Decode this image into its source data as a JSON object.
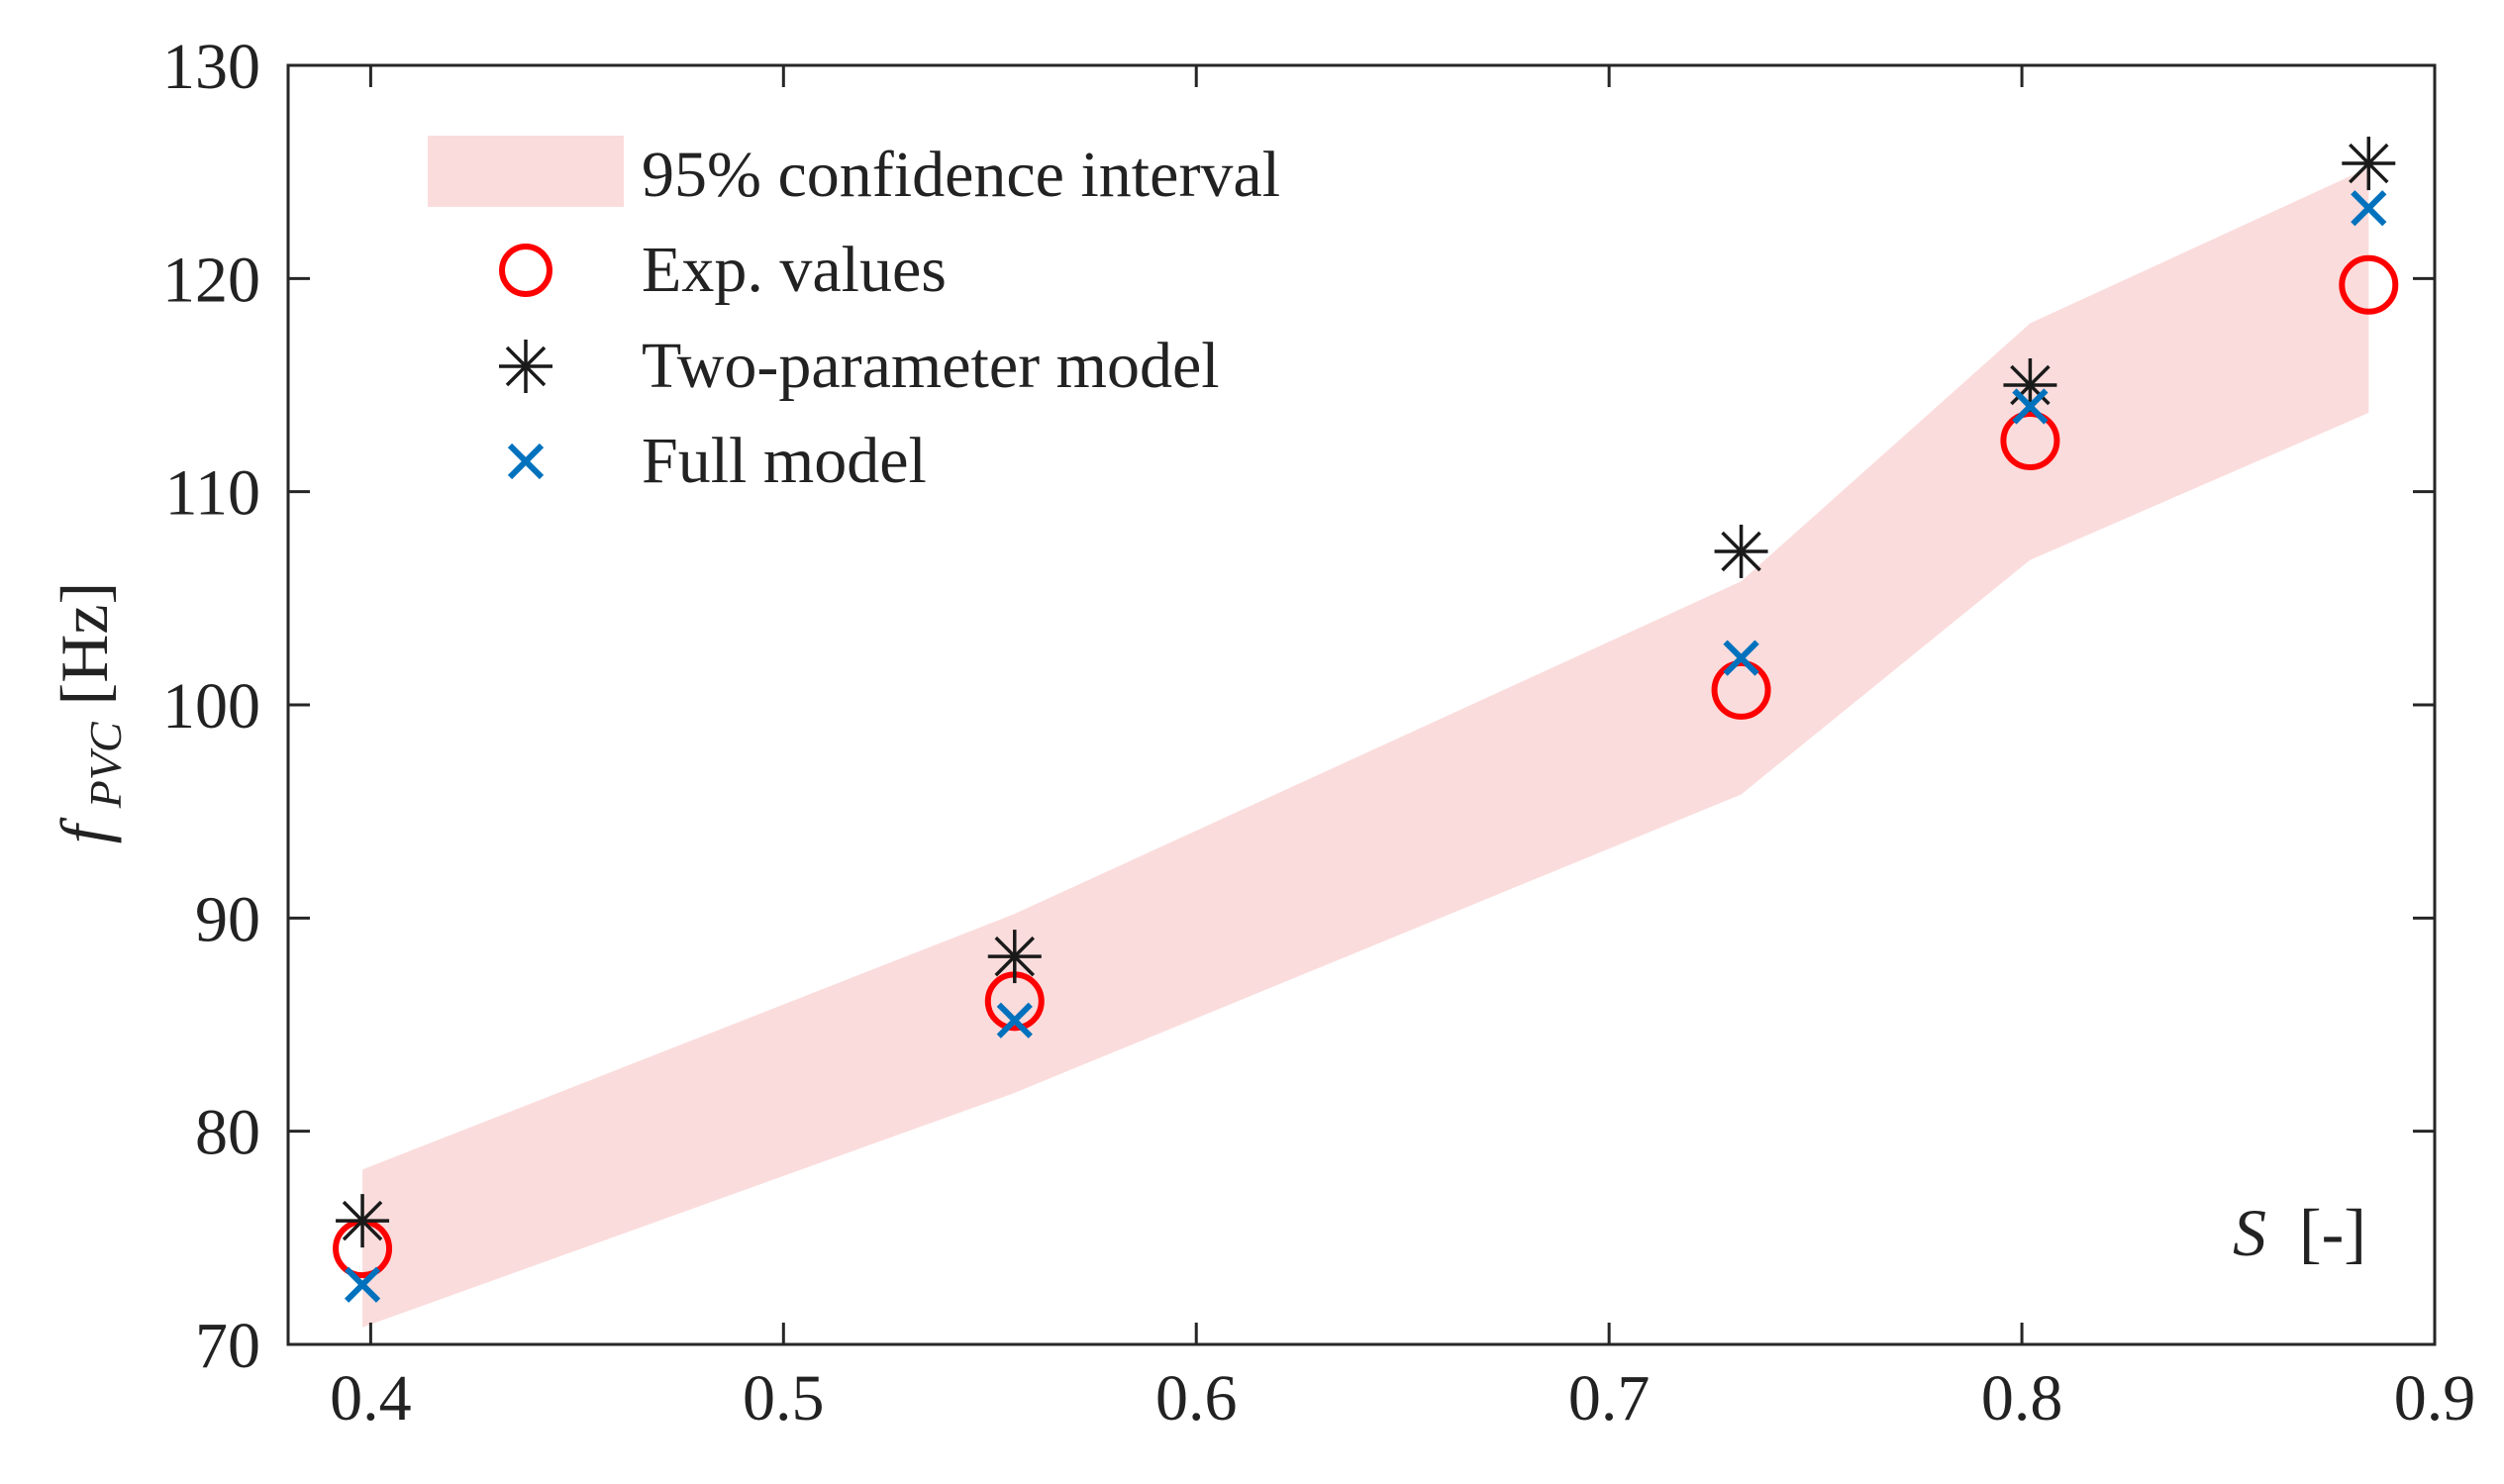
{
  "chart_data": {
    "type": "scatter",
    "title": "",
    "xlabel": "[-]",
    "xlabel_symbol": "S",
    "ylabel": "[Hz]",
    "ylabel_symbol": "f",
    "ylabel_subscript": "PVC",
    "xlim": [
      0.38,
      0.9
    ],
    "ylim": [
      70,
      130
    ],
    "xticks": [
      0.4,
      0.5,
      0.6,
      0.7,
      0.8,
      0.9
    ],
    "xtick_labels": [
      "0.4",
      "0.5",
      "0.6",
      "0.7",
      "0.8",
      "0.9"
    ],
    "yticks": [
      70,
      80,
      90,
      100,
      110,
      120,
      130
    ],
    "ytick_labels": [
      "70",
      "80",
      "90",
      "100",
      "110",
      "120",
      "130"
    ],
    "legend_position": "top-left",
    "confidence_band": {
      "name": "95% confidence interval",
      "color": "#fbdcdc",
      "x": [
        0.398,
        0.556,
        0.732,
        0.802,
        0.884
      ],
      "upper": [
        78.2,
        90.2,
        105.8,
        117.9,
        125.2
      ],
      "lower": [
        70.8,
        81.8,
        95.8,
        106.8,
        113.7
      ]
    },
    "series": [
      {
        "name": "Exp. values",
        "marker": "circle",
        "color": "#ff0000",
        "x": [
          0.398,
          0.556,
          0.732,
          0.802,
          0.884
        ],
        "y": [
          74.5,
          86.1,
          100.7,
          112.4,
          119.7
        ]
      },
      {
        "name": "Two-parameter model",
        "marker": "asterisk",
        "color": "#1a1a1a",
        "x": [
          0.398,
          0.556,
          0.732,
          0.802,
          0.884
        ],
        "y": [
          75.8,
          88.2,
          107.2,
          115.0,
          125.4
        ]
      },
      {
        "name": "Full model",
        "marker": "cross",
        "color": "#0072bd",
        "x": [
          0.398,
          0.556,
          0.732,
          0.802,
          0.884
        ],
        "y": [
          72.8,
          85.2,
          102.2,
          114.0,
          123.3
        ]
      }
    ]
  }
}
